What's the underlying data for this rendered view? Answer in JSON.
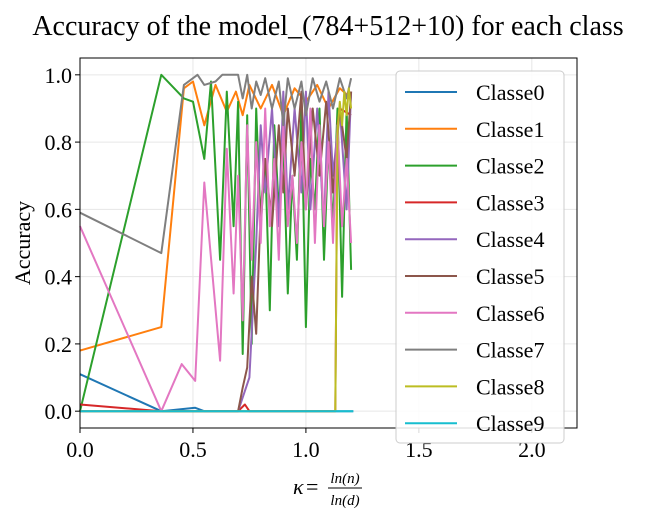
{
  "chart_data": {
    "type": "line",
    "title": "Accuracy of the model_(784+512+10) for each class",
    "xlabel_symbol": "κ",
    "xlabel_equals": "=",
    "xlabel_numerator": "ln(n)",
    "xlabel_denominator": "ln(d)",
    "ylabel": "Accuracy",
    "xlim": [
      0.0,
      2.2
    ],
    "ylim": [
      -0.05,
      1.05
    ],
    "xticks": [
      0.0,
      0.5,
      1.0,
      1.5,
      2.0
    ],
    "xtick_labels": [
      "0.0",
      "0.5",
      "1.0",
      "1.5",
      "2.0"
    ],
    "yticks": [
      0.0,
      0.2,
      0.4,
      0.6,
      0.8,
      1.0
    ],
    "ytick_labels": [
      "0.0",
      "0.2",
      "0.4",
      "0.6",
      "0.8",
      "1.0"
    ],
    "grid": true,
    "legend_position": "right",
    "series": [
      {
        "name": "Classe0",
        "color": "#1f77b4",
        "x": [
          0.0,
          0.36,
          0.51,
          0.55,
          0.7,
          1.0,
          1.21
        ],
        "y": [
          0.11,
          0.0,
          0.01,
          0.0,
          0.0,
          0.0,
          0.0
        ]
      },
      {
        "name": "Classe1",
        "color": "#ff7f0e",
        "x": [
          0.0,
          0.36,
          0.46,
          0.5,
          0.55,
          0.6,
          0.65,
          0.69,
          0.72,
          0.75,
          0.8,
          0.85,
          0.9,
          0.95,
          1.0,
          1.05,
          1.1,
          1.15,
          1.2
        ],
        "y": [
          0.18,
          0.25,
          0.96,
          0.98,
          0.85,
          0.97,
          0.89,
          0.95,
          0.88,
          0.97,
          0.9,
          0.97,
          0.88,
          0.96,
          0.92,
          0.97,
          0.9,
          0.96,
          0.93
        ]
      },
      {
        "name": "Classe2",
        "color": "#2ca02c",
        "x": [
          0.0,
          0.36,
          0.46,
          0.5,
          0.55,
          0.58,
          0.62,
          0.65,
          0.68,
          0.7,
          0.72,
          0.74,
          0.76,
          0.78,
          0.8,
          0.82,
          0.84,
          0.86,
          0.88,
          0.9,
          0.92,
          0.94,
          0.96,
          0.98,
          1.0,
          1.02,
          1.04,
          1.06,
          1.08,
          1.1,
          1.12,
          1.14,
          1.16,
          1.18,
          1.2
        ],
        "y": [
          0.0,
          1.0,
          0.93,
          0.92,
          0.75,
          0.98,
          0.45,
          0.95,
          0.55,
          0.92,
          0.17,
          0.88,
          0.2,
          0.9,
          0.55,
          0.75,
          0.3,
          0.85,
          0.6,
          0.8,
          0.35,
          0.7,
          0.45,
          0.9,
          0.25,
          0.75,
          0.6,
          0.9,
          0.45,
          0.8,
          0.55,
          0.9,
          0.34,
          0.9,
          0.42
        ]
      },
      {
        "name": "Classe3",
        "color": "#d62728",
        "x": [
          0.0,
          0.36,
          0.5,
          0.7,
          0.73,
          0.75,
          0.8,
          1.0,
          1.13,
          1.14,
          1.15,
          1.2
        ],
        "y": [
          0.02,
          0.0,
          0.0,
          0.0,
          0.02,
          0.0,
          0.0,
          0.0,
          0.0,
          0.85,
          0.9,
          0.88
        ]
      },
      {
        "name": "Classe4",
        "color": "#9467bd",
        "x": [
          0.0,
          0.7,
          0.75,
          0.78,
          0.8,
          0.82,
          0.85,
          0.88,
          0.9,
          0.92,
          0.95,
          0.98,
          1.0,
          1.02,
          1.05,
          1.08,
          1.1,
          1.12,
          1.15,
          1.18,
          1.2
        ],
        "y": [
          0.0,
          0.0,
          0.1,
          0.5,
          0.85,
          0.65,
          0.9,
          0.55,
          0.95,
          0.6,
          0.9,
          0.65,
          0.95,
          0.6,
          0.9,
          0.55,
          0.95,
          0.7,
          0.9,
          0.6,
          0.95
        ]
      },
      {
        "name": "Classe5",
        "color": "#8c564b",
        "x": [
          0.0,
          0.36,
          0.55,
          0.7,
          0.72,
          0.74,
          0.76,
          0.78,
          0.8,
          0.82,
          0.85,
          0.88,
          0.9,
          0.92,
          0.95,
          0.98,
          1.0,
          1.03,
          1.06,
          1.09,
          1.12,
          1.15,
          1.18,
          1.2
        ],
        "y": [
          0.0,
          0.0,
          0.0,
          0.0,
          0.07,
          0.13,
          0.4,
          0.23,
          0.6,
          0.75,
          0.55,
          0.85,
          0.65,
          0.9,
          0.7,
          0.95,
          0.6,
          0.9,
          0.7,
          0.92,
          0.65,
          0.9,
          0.75,
          0.95
        ]
      },
      {
        "name": "Classe6",
        "color": "#e377c2",
        "x": [
          0.0,
          0.36,
          0.45,
          0.51,
          0.55,
          0.62,
          0.65,
          0.68,
          0.7,
          0.72,
          0.74,
          0.76,
          0.78,
          0.8,
          0.82,
          0.84,
          0.86,
          0.88,
          0.9,
          0.92,
          0.94,
          0.96,
          0.98,
          1.0,
          1.02,
          1.04,
          1.06,
          1.08,
          1.1,
          1.12,
          1.14,
          1.16,
          1.18,
          1.2
        ],
        "y": [
          0.55,
          0.0,
          0.14,
          0.09,
          0.68,
          0.15,
          0.78,
          0.35,
          0.7,
          0.27,
          0.85,
          0.45,
          0.8,
          0.5,
          0.9,
          0.55,
          0.75,
          0.45,
          0.85,
          0.55,
          0.7,
          0.5,
          0.8,
          0.6,
          0.9,
          0.5,
          0.85,
          0.55,
          0.8,
          0.5,
          0.85,
          0.55,
          0.75,
          0.5
        ]
      },
      {
        "name": "Classe7",
        "color": "#7f7f7f",
        "x": [
          0.0,
          0.36,
          0.46,
          0.52,
          0.55,
          0.6,
          0.63,
          0.7,
          0.72,
          0.74,
          0.76,
          0.78,
          0.8,
          0.82,
          0.85,
          0.88,
          0.9,
          0.92,
          0.95,
          0.98,
          1.0,
          1.03,
          1.06,
          1.09,
          1.12,
          1.15,
          1.18,
          1.2
        ],
        "y": [
          0.59,
          0.47,
          0.97,
          1.0,
          0.97,
          0.98,
          1.0,
          1.0,
          0.93,
          1.0,
          0.9,
          0.98,
          0.94,
          0.99,
          0.9,
          0.98,
          0.85,
          0.99,
          0.9,
          0.98,
          0.88,
          0.99,
          0.92,
          0.98,
          0.9,
          0.99,
          0.93,
          0.99
        ]
      },
      {
        "name": "Classe8",
        "color": "#bcbd22",
        "x": [
          0.0,
          0.5,
          1.0,
          1.13,
          1.14,
          1.15,
          1.16,
          1.17,
          1.18,
          1.19,
          1.2
        ],
        "y": [
          0.0,
          0.0,
          0.0,
          0.0,
          0.83,
          0.92,
          0.85,
          0.95,
          0.88,
          0.96,
          0.9
        ]
      },
      {
        "name": "Classe9",
        "color": "#17becf",
        "x": [
          0.0,
          0.36,
          0.5,
          0.7,
          1.0,
          1.21
        ],
        "y": [
          0.0,
          0.0,
          0.0,
          0.0,
          0.0,
          0.0
        ]
      }
    ]
  }
}
